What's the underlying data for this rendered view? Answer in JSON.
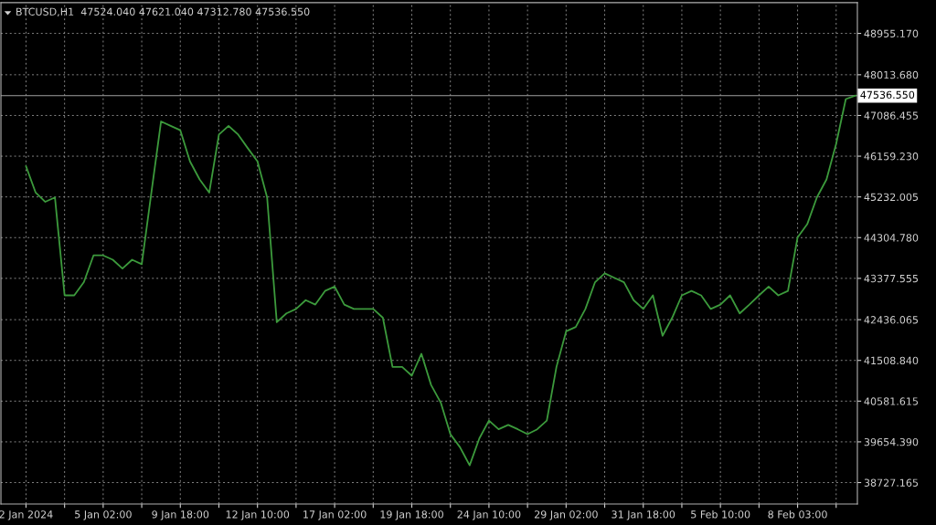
{
  "chart_data": {
    "type": "line",
    "title": "BTCUSD,H1  47524.040 47621.040 47312.780 47536.550",
    "categories": [
      "2 Jan 2024",
      null,
      null,
      null,
      null,
      null,
      null,
      null,
      "5 Jan 02:00",
      null,
      null,
      null,
      null,
      null,
      null,
      null,
      "9 Jan 18:00",
      null,
      null,
      null,
      null,
      null,
      null,
      null,
      "12 Jan 10:00",
      null,
      null,
      null,
      null,
      null,
      null,
      null,
      "17 Jan 02:00",
      null,
      null,
      null,
      null,
      null,
      null,
      null,
      "19 Jan 18:00",
      null,
      null,
      null,
      null,
      null,
      null,
      null,
      "24 Jan 10:00",
      null,
      null,
      null,
      null,
      null,
      null,
      null,
      "29 Jan 02:00",
      null,
      null,
      null,
      null,
      null,
      null,
      null,
      "31 Jan 18:00",
      null,
      null,
      null,
      null,
      null,
      null,
      null,
      "5 Feb 10:00",
      null,
      null,
      null,
      null,
      null,
      null,
      null,
      "8 Feb 03:00",
      null,
      null,
      null,
      null,
      null,
      null
    ],
    "series": [
      {
        "color": "#3c9a3c",
        "values": [
          45930,
          45330,
          45120,
          45220,
          42990,
          42990,
          43290,
          43900,
          43900,
          43800,
          43600,
          43800,
          43700,
          45330,
          46950,
          46850,
          46750,
          46040,
          45630,
          45330,
          46650,
          46850,
          46650,
          46340,
          46040,
          45220,
          42380,
          42580,
          42680,
          42880,
          42780,
          43090,
          43190,
          42780,
          42680,
          42680,
          42680,
          42480,
          41360,
          41360,
          41160,
          41660,
          40950,
          40550,
          39830,
          39530,
          39120,
          39730,
          40140,
          39940,
          40040,
          39940,
          39830,
          39940,
          40140,
          41360,
          42170,
          42270,
          42680,
          43290,
          43490,
          43390,
          43290,
          42880,
          42680,
          42990,
          42070,
          42480,
          42990,
          43090,
          42990,
          42680,
          42780,
          42990,
          42580,
          42780,
          42990,
          43190,
          42990,
          43090,
          44310,
          44610,
          45220,
          45630,
          46440,
          47460,
          47540
        ]
      }
    ],
    "ylim": [
      38239,
      49656
    ],
    "yticks": [
      {
        "value": 38727.165,
        "label": "38727.165"
      },
      {
        "value": 39654.39,
        "label": "39654.390"
      },
      {
        "value": 40581.615,
        "label": "40581.615"
      },
      {
        "value": 41508.84,
        "label": "41508.840"
      },
      {
        "value": 42436.065,
        "label": "42436.065"
      },
      {
        "value": 43377.555,
        "label": "43377.555"
      },
      {
        "value": 44304.78,
        "label": "44304.780"
      },
      {
        "value": 45232.005,
        "label": "45232.005"
      },
      {
        "value": 46159.23,
        "label": "46159.230"
      },
      {
        "value": 47086.455,
        "label": "47086.455"
      },
      {
        "value": 48013.68,
        "label": "48013.680"
      },
      {
        "value": 48955.17,
        "label": "48955.170"
      }
    ],
    "ref_lines": [
      {
        "axis": "y",
        "value": 47536.55,
        "label": "47536.550",
        "color": "#a0a0a0",
        "line_style": "solid"
      }
    ],
    "grid": true,
    "line_style": "solid"
  }
}
